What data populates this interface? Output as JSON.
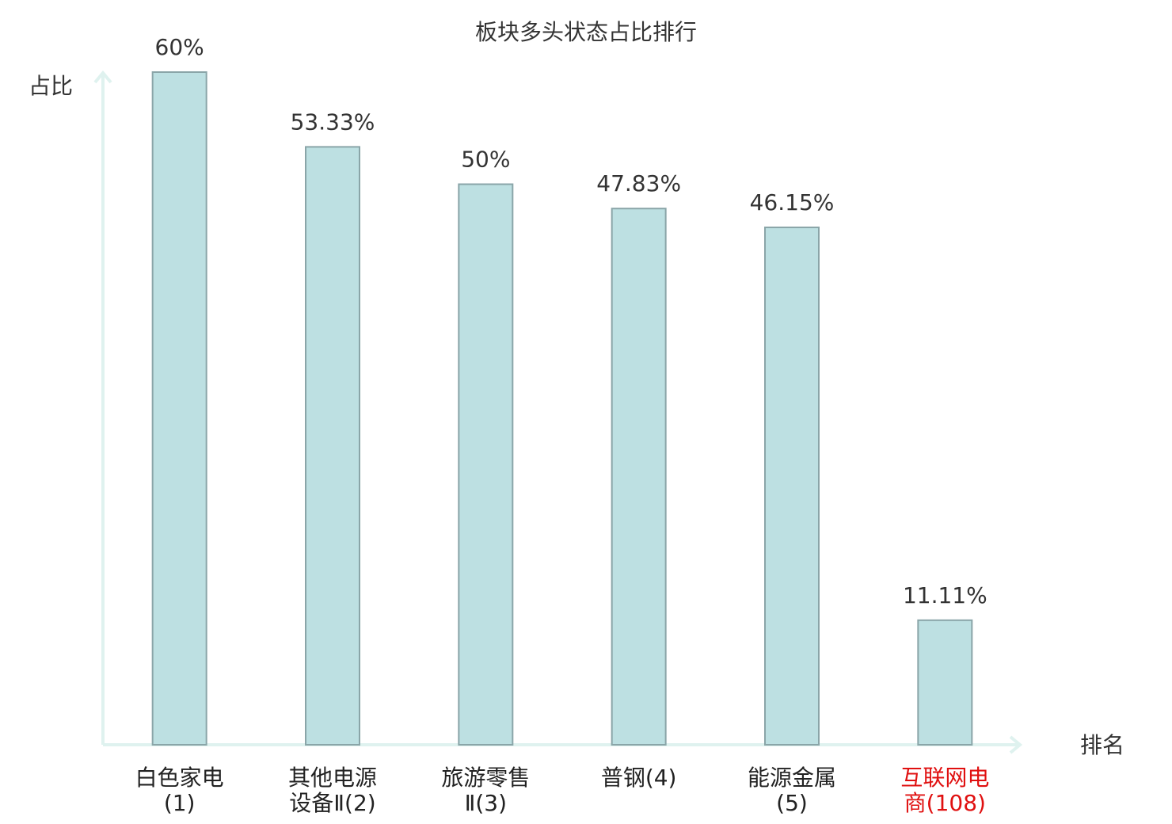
{
  "chart_data": {
    "type": "bar",
    "title": "板块多头状态占比排行",
    "y_label": "占比",
    "x_label": "排名",
    "categories": [
      "白色家电(1)",
      "其他电源设备Ⅱ(2)",
      "旅游零售Ⅱ(3)",
      "普钢(4)",
      "能源金属(5)",
      "互联网电商(108)"
    ],
    "category_colors": [
      "#222222",
      "#222222",
      "#222222",
      "#222222",
      "#222222",
      "#e01010"
    ],
    "values": [
      60,
      53.33,
      50,
      47.83,
      46.15,
      11.11
    ],
    "value_labels": [
      "60%",
      "53.33%",
      "50%",
      "47.83%",
      "46.15%",
      "11.11%"
    ],
    "color": "#bde0e2",
    "edge_color": "#8aa5a8",
    "ylim": [
      0,
      60
    ]
  }
}
